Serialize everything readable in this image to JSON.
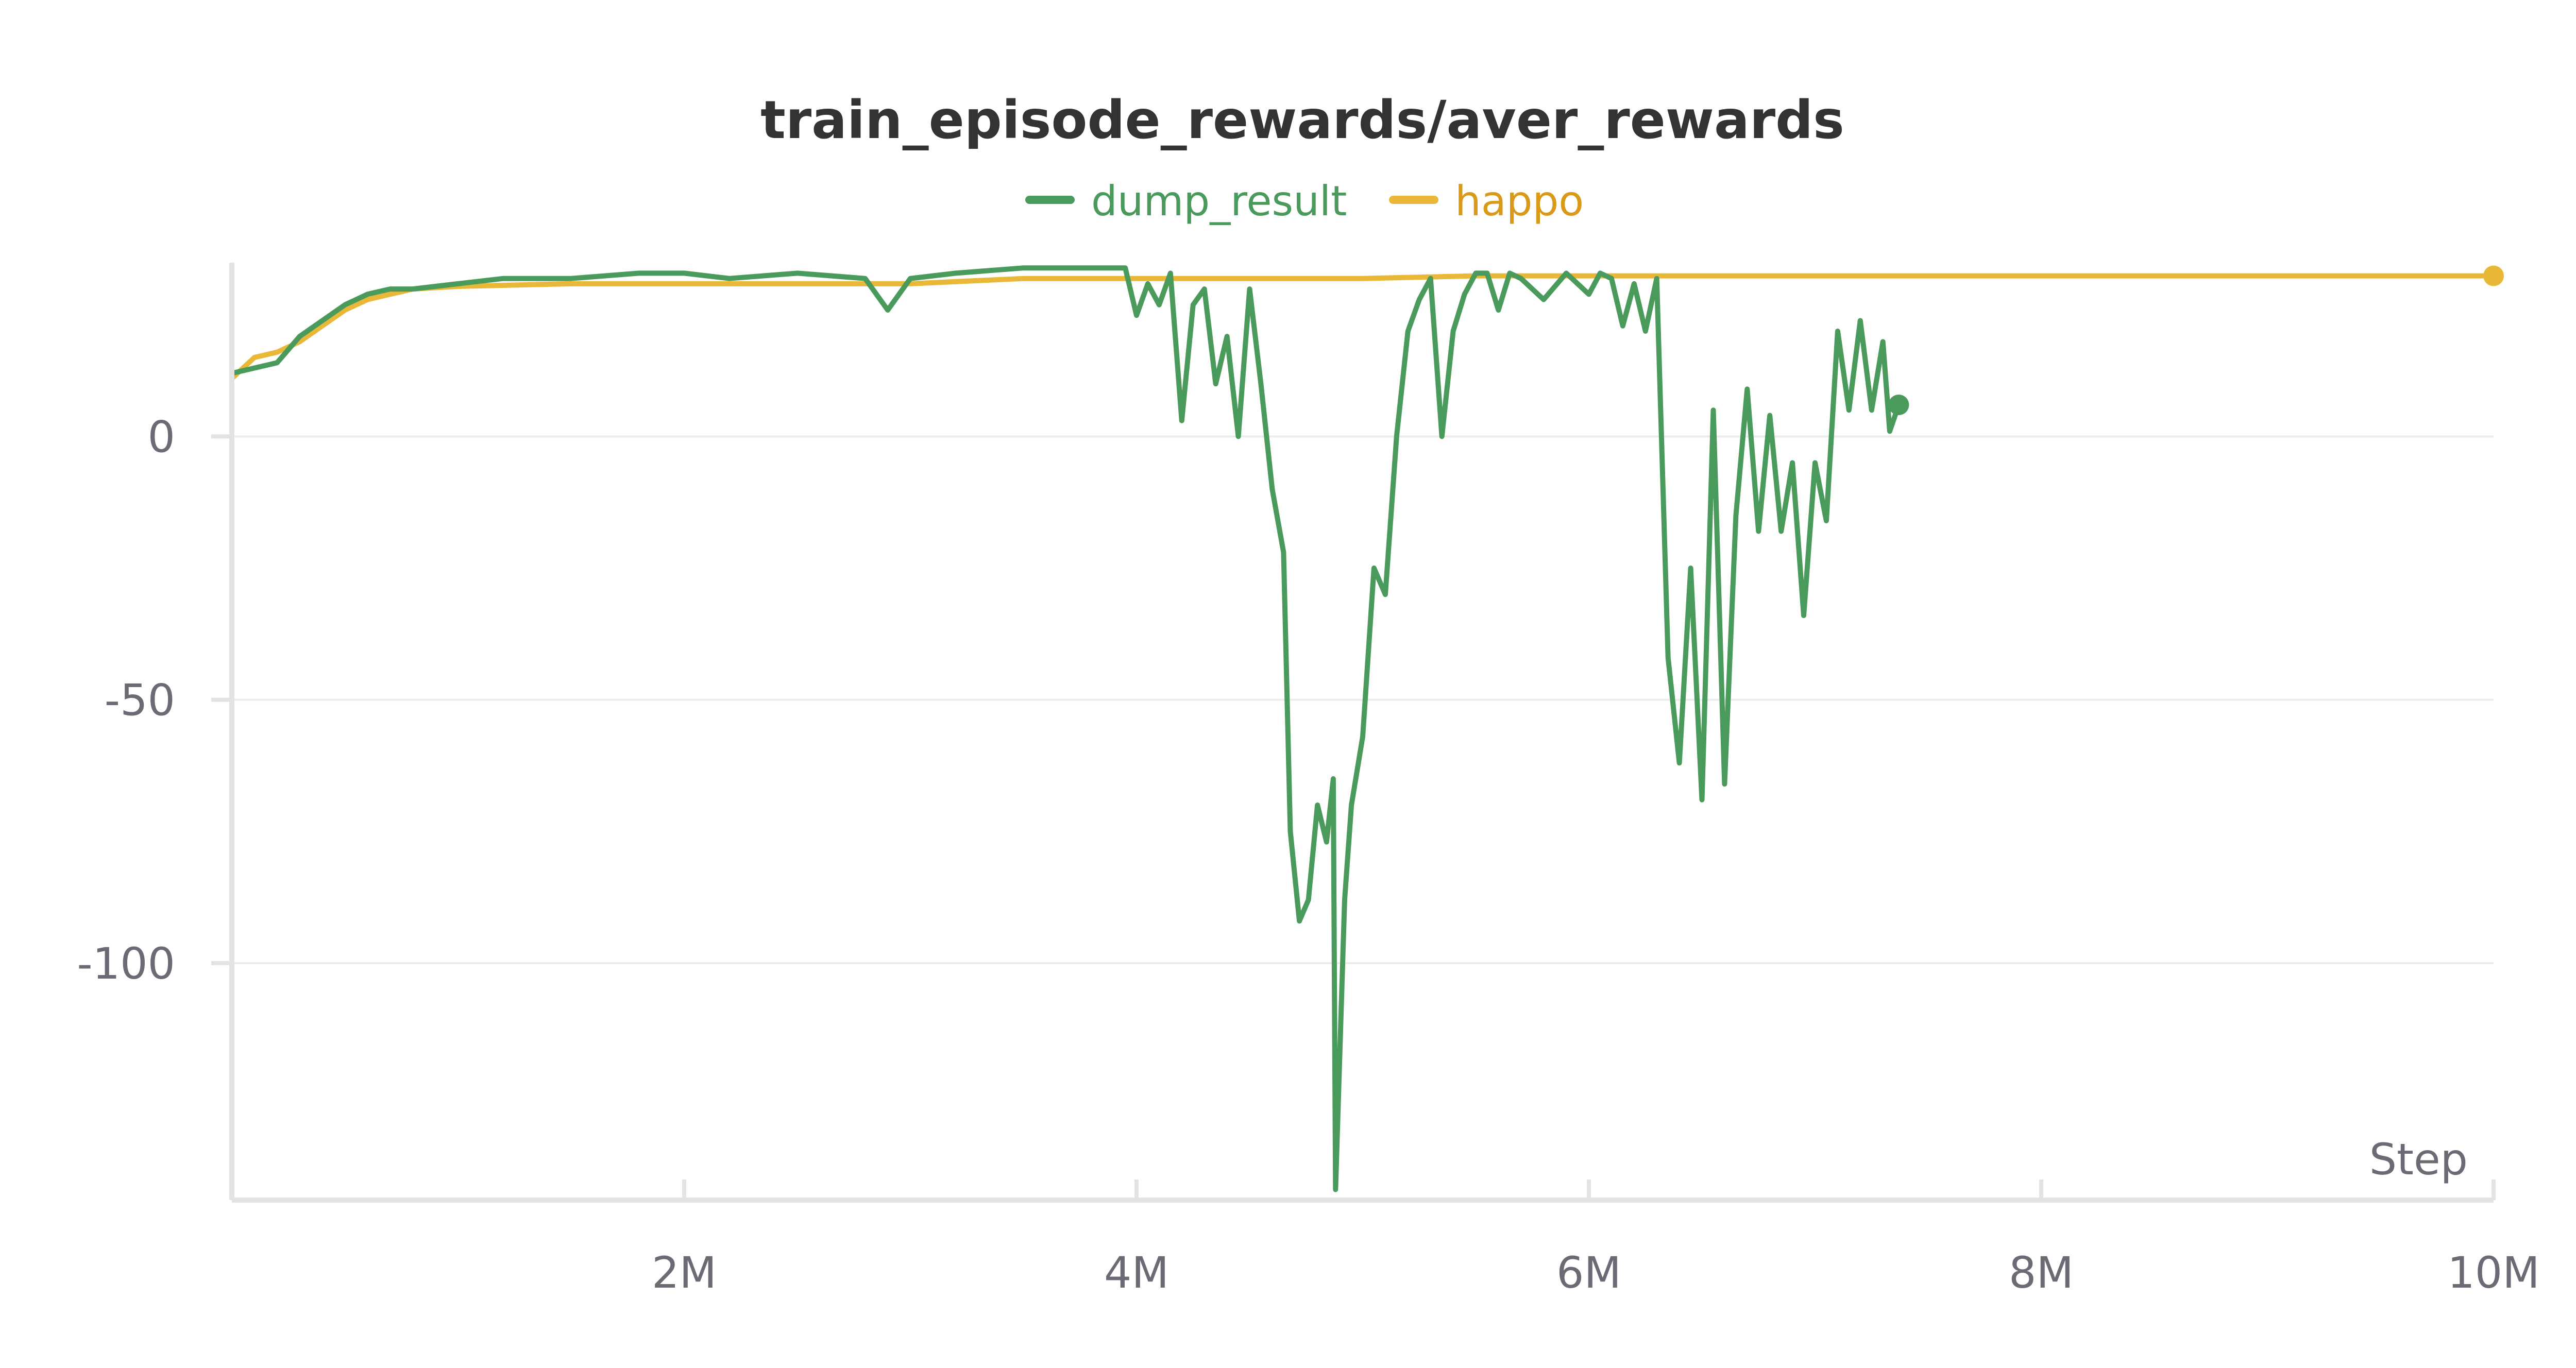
{
  "chart_data": {
    "type": "line",
    "title": "train_episode_rewards/aver_rewards",
    "xlabel": "Step",
    "ylabel": "",
    "xlim": [
      0,
      10000000
    ],
    "ylim": [
      -145,
      33
    ],
    "x_ticks": [
      2000000,
      4000000,
      6000000,
      8000000,
      10000000
    ],
    "x_tick_labels": [
      "2M",
      "4M",
      "6M",
      "8M",
      "10M"
    ],
    "y_ticks": [
      0,
      -50,
      -100
    ],
    "y_tick_labels": [
      "0",
      "-50",
      "-100"
    ],
    "grid": "horizontal",
    "legend_position": "top-center",
    "series": [
      {
        "name": "dump_result",
        "color": "#4a9a5b",
        "points": [
          [
            0,
            12
          ],
          [
            100000,
            13
          ],
          [
            200000,
            14
          ],
          [
            300000,
            19
          ],
          [
            400000,
            22
          ],
          [
            500000,
            25
          ],
          [
            600000,
            27
          ],
          [
            700000,
            28
          ],
          [
            800000,
            28
          ],
          [
            1000000,
            29
          ],
          [
            1200000,
            30
          ],
          [
            1500000,
            30
          ],
          [
            1800000,
            31
          ],
          [
            2000000,
            31
          ],
          [
            2200000,
            30
          ],
          [
            2500000,
            31
          ],
          [
            2800000,
            30
          ],
          [
            2900000,
            24
          ],
          [
            3000000,
            30
          ],
          [
            3200000,
            31
          ],
          [
            3500000,
            32
          ],
          [
            3800000,
            32
          ],
          [
            3950000,
            32
          ],
          [
            4000000,
            23
          ],
          [
            4050000,
            29
          ],
          [
            4100000,
            25
          ],
          [
            4150000,
            31
          ],
          [
            4200000,
            3
          ],
          [
            4250000,
            25
          ],
          [
            4300000,
            28
          ],
          [
            4350000,
            10
          ],
          [
            4400000,
            19
          ],
          [
            4450000,
            0
          ],
          [
            4500000,
            28
          ],
          [
            4550000,
            10
          ],
          [
            4600000,
            -10
          ],
          [
            4650000,
            -22
          ],
          [
            4680000,
            -75
          ],
          [
            4720000,
            -92
          ],
          [
            4760000,
            -88
          ],
          [
            4800000,
            -70
          ],
          [
            4840000,
            -77
          ],
          [
            4870000,
            -65
          ],
          [
            4880000,
            -143
          ],
          [
            4920000,
            -88
          ],
          [
            4950000,
            -70
          ],
          [
            5000000,
            -57
          ],
          [
            5050000,
            -25
          ],
          [
            5100000,
            -30
          ],
          [
            5150000,
            0
          ],
          [
            5200000,
            20
          ],
          [
            5250000,
            26
          ],
          [
            5300000,
            30
          ],
          [
            5350000,
            0
          ],
          [
            5400000,
            20
          ],
          [
            5450000,
            27
          ],
          [
            5500000,
            31
          ],
          [
            5550000,
            31
          ],
          [
            5600000,
            24
          ],
          [
            5650000,
            31
          ],
          [
            5700000,
            30
          ],
          [
            5800000,
            26
          ],
          [
            5900000,
            31
          ],
          [
            6000000,
            27
          ],
          [
            6050000,
            31
          ],
          [
            6100000,
            30
          ],
          [
            6150000,
            21
          ],
          [
            6200000,
            29
          ],
          [
            6250000,
            20
          ],
          [
            6300000,
            30
          ],
          [
            6350000,
            -42
          ],
          [
            6400000,
            -62
          ],
          [
            6450000,
            -25
          ],
          [
            6500000,
            -69
          ],
          [
            6550000,
            5
          ],
          [
            6600000,
            -66
          ],
          [
            6650000,
            -15
          ],
          [
            6700000,
            9
          ],
          [
            6750000,
            -18
          ],
          [
            6800000,
            4
          ],
          [
            6850000,
            -18
          ],
          [
            6900000,
            -5
          ],
          [
            6950000,
            -34
          ],
          [
            7000000,
            -5
          ],
          [
            7050000,
            -16
          ],
          [
            7100000,
            20
          ],
          [
            7150000,
            5
          ],
          [
            7200000,
            22
          ],
          [
            7250000,
            5
          ],
          [
            7300000,
            18
          ],
          [
            7330000,
            1
          ],
          [
            7370000,
            6
          ]
        ]
      },
      {
        "name": "happo",
        "color": "#eab839",
        "points": [
          [
            0,
            11
          ],
          [
            100000,
            15
          ],
          [
            200000,
            16
          ],
          [
            300000,
            18
          ],
          [
            400000,
            21
          ],
          [
            500000,
            24
          ],
          [
            600000,
            26
          ],
          [
            700000,
            27
          ],
          [
            800000,
            28
          ],
          [
            1000000,
            28.5
          ],
          [
            1500000,
            29
          ],
          [
            2000000,
            29
          ],
          [
            2500000,
            29
          ],
          [
            3000000,
            29
          ],
          [
            3500000,
            30
          ],
          [
            4000000,
            30
          ],
          [
            4500000,
            30
          ],
          [
            5000000,
            30
          ],
          [
            5500000,
            30.5
          ],
          [
            6000000,
            30.5
          ],
          [
            6500000,
            30.5
          ],
          [
            7000000,
            30.5
          ],
          [
            7500000,
            30.5
          ],
          [
            8000000,
            30.5
          ],
          [
            8500000,
            30.5
          ],
          [
            9000000,
            30.5
          ],
          [
            9500000,
            30.5
          ],
          [
            10000000,
            30.5
          ]
        ]
      }
    ]
  }
}
